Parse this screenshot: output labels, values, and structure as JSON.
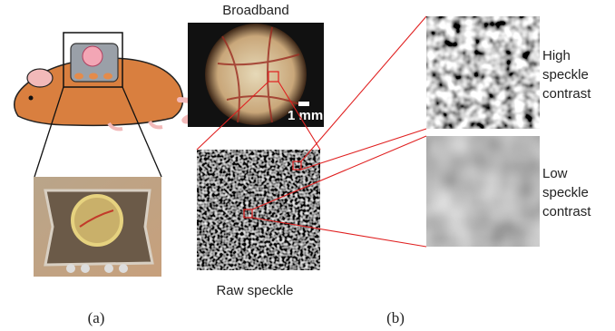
{
  "panel_a": {
    "label": "(a)"
  },
  "panel_b": {
    "label": "(b)",
    "broadband_title": "Broadband",
    "scale_bar": "1 mm",
    "raw_title": "Raw speckle",
    "high_label": [
      "High",
      "speckle",
      "contrast"
    ],
    "low_label": [
      "Low",
      "speckle",
      "contrast"
    ]
  }
}
